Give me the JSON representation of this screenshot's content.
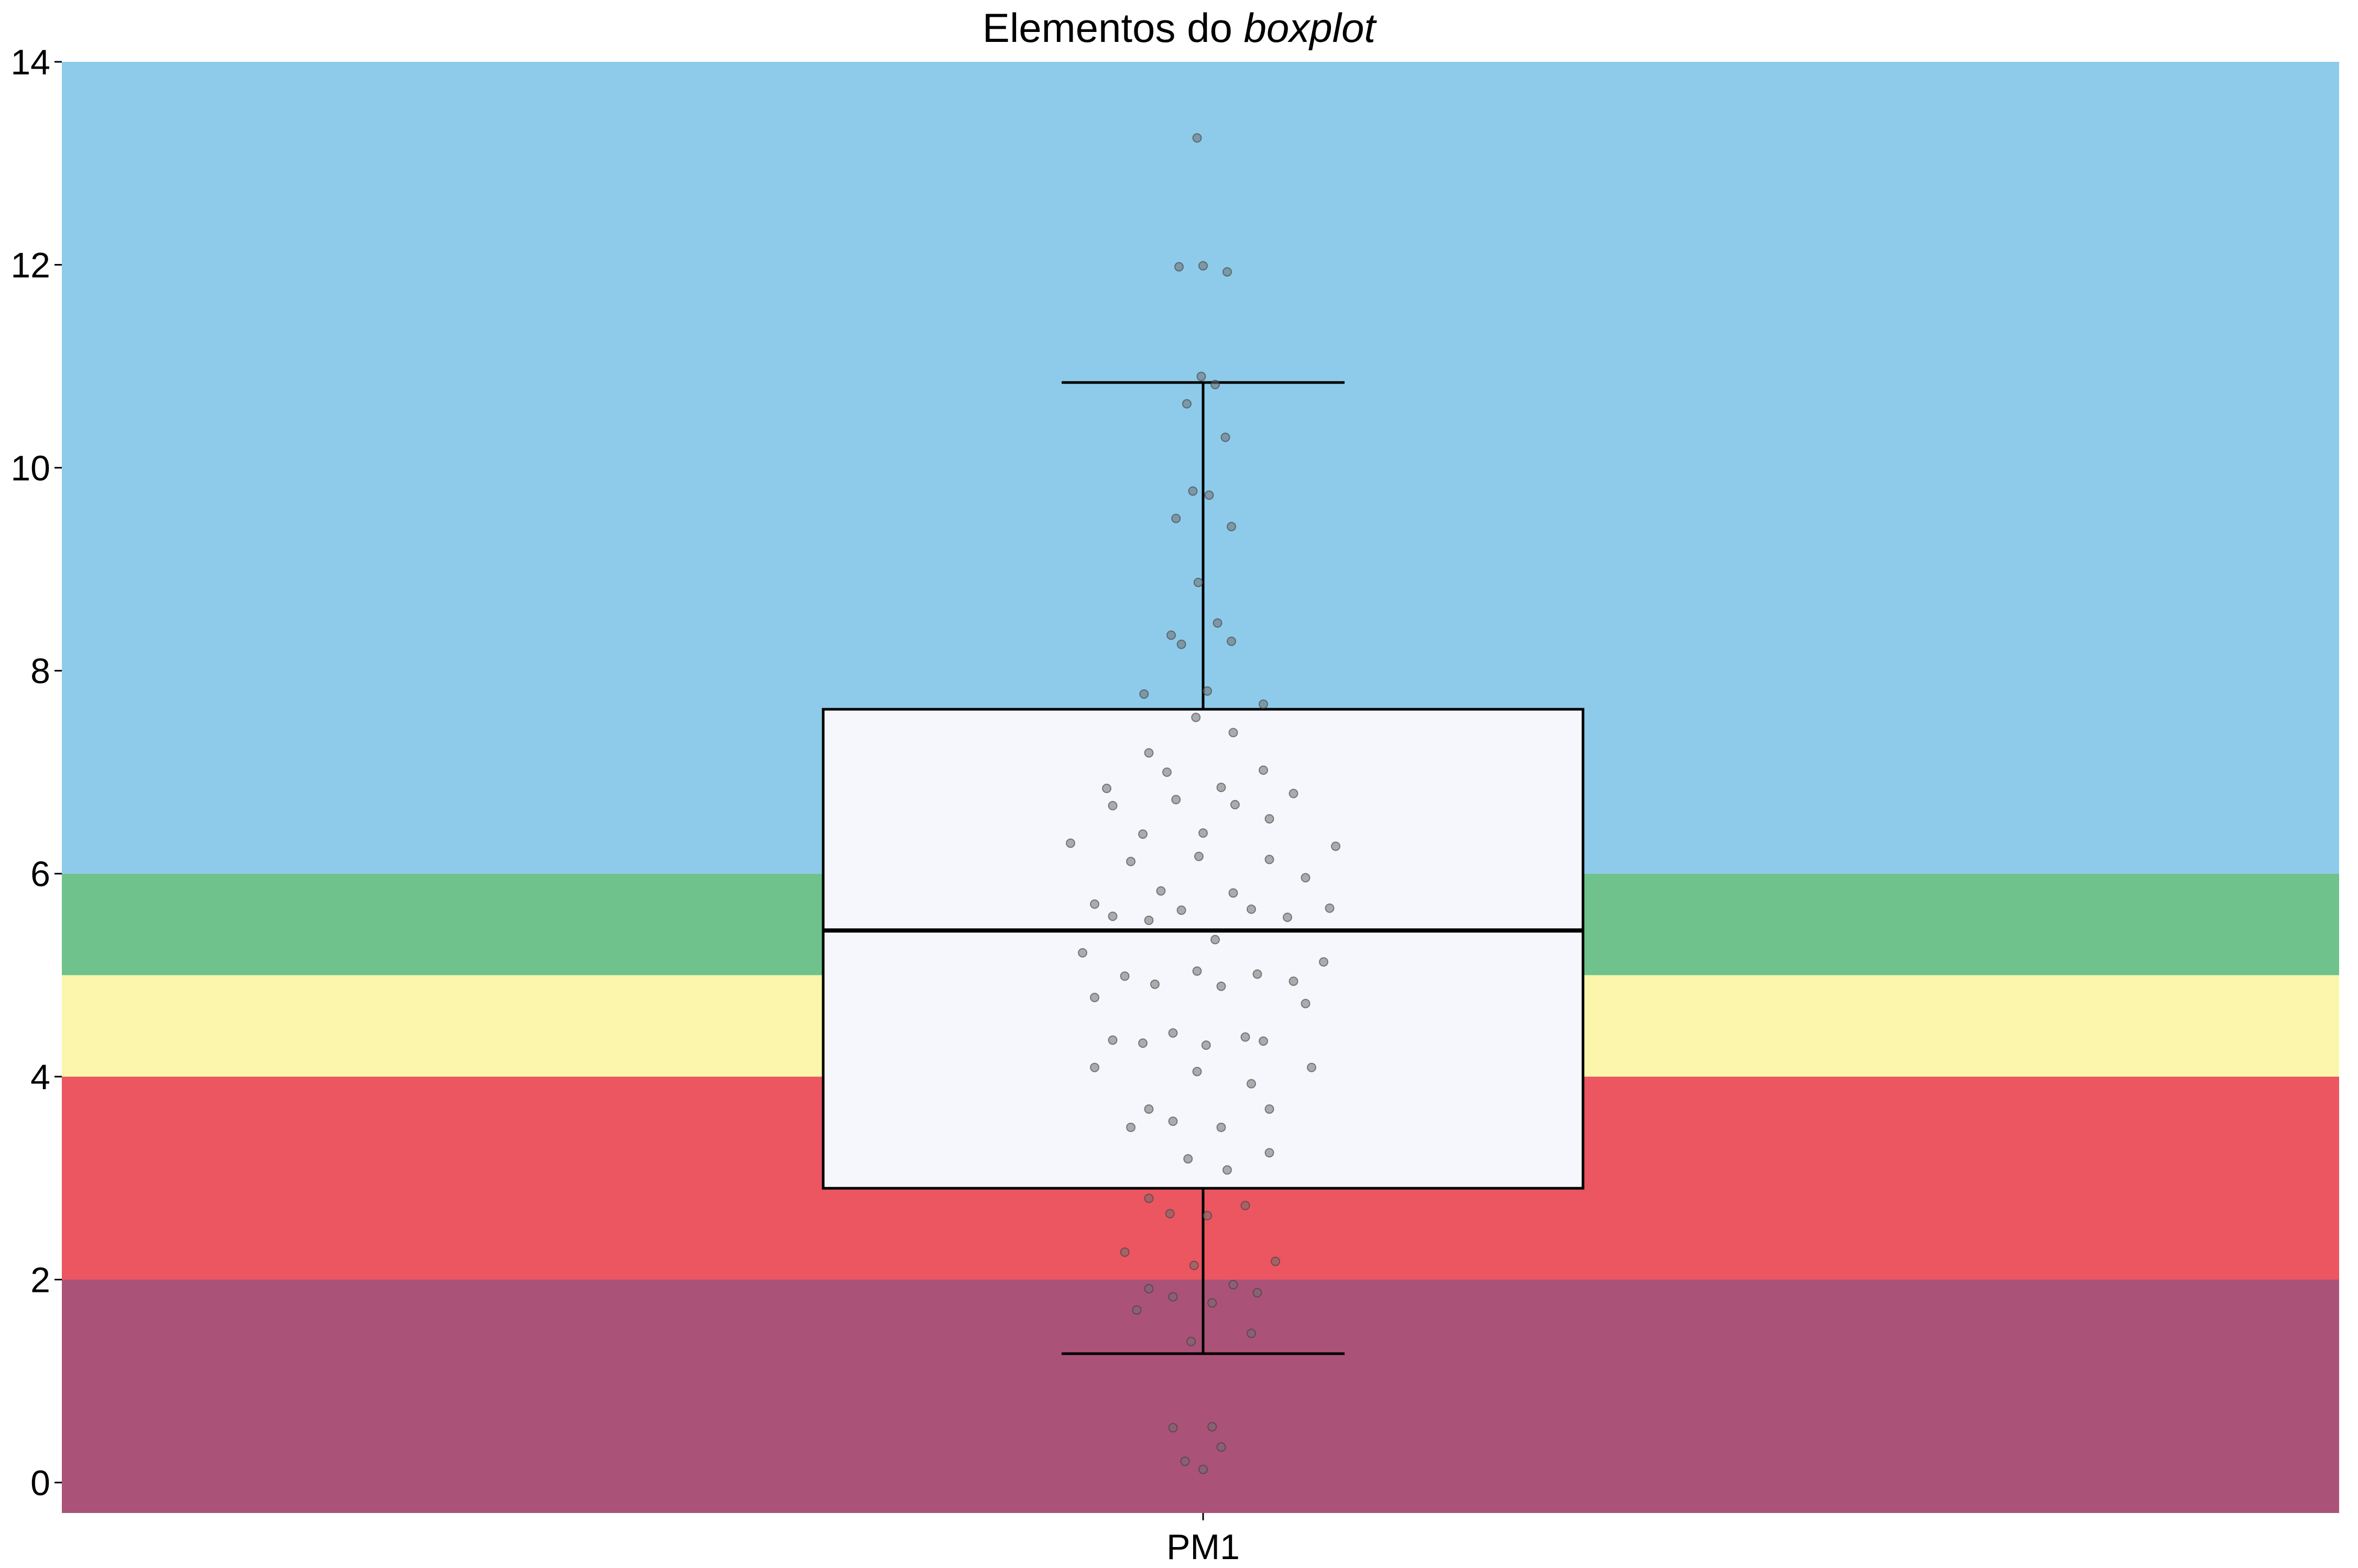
{
  "chart_data": {
    "type": "box",
    "title": {
      "text": "Elementos do",
      "emphasis": "boxplot"
    },
    "xlabel": "",
    "ylabel": "",
    "ylim": [
      -0.3,
      14
    ],
    "yticks": [
      0,
      2,
      4,
      6,
      8,
      10,
      12,
      14
    ],
    "categories": [
      "PM1"
    ],
    "bands": [
      {
        "from": -0.3,
        "to": 2,
        "color": "#ab5279"
      },
      {
        "from": 2,
        "to": 4,
        "color": "#eb5661"
      },
      {
        "from": 4,
        "to": 5,
        "color": "#fbf6ab"
      },
      {
        "from": 5,
        "to": 6,
        "color": "#6fc28b"
      },
      {
        "from": 6,
        "to": 14,
        "color": "#8ecbea"
      }
    ],
    "box": {
      "category": "PM1",
      "whisker_low": 1.27,
      "q1": 2.9,
      "median": 5.44,
      "q3": 7.62,
      "whisker_high": 10.84,
      "fill": "#f5f7fc",
      "stroke": "#000000"
    },
    "points": [
      [
        -0.01,
        13.25
      ],
      [
        -0.04,
        11.98
      ],
      [
        0.0,
        11.99
      ],
      [
        0.04,
        11.93
      ],
      [
        -0.003,
        10.9
      ],
      [
        0.02,
        10.82
      ],
      [
        -0.027,
        10.63
      ],
      [
        0.037,
        10.3
      ],
      [
        -0.017,
        9.77
      ],
      [
        0.01,
        9.73
      ],
      [
        -0.045,
        9.5
      ],
      [
        0.047,
        9.42
      ],
      [
        -0.008,
        8.87
      ],
      [
        0.024,
        8.47
      ],
      [
        -0.053,
        8.35
      ],
      [
        -0.036,
        8.26
      ],
      [
        0.047,
        8.29
      ],
      [
        -0.098,
        7.77
      ],
      [
        0.007,
        7.8
      ],
      [
        0.1,
        7.67
      ],
      [
        -0.012,
        7.54
      ],
      [
        0.05,
        7.39
      ],
      [
        -0.09,
        7.19
      ],
      [
        -0.06,
        7.0
      ],
      [
        0.1,
        7.02
      ],
      [
        -0.16,
        6.84
      ],
      [
        0.03,
        6.85
      ],
      [
        0.15,
        6.79
      ],
      [
        -0.045,
        6.73
      ],
      [
        0.053,
        6.68
      ],
      [
        -0.15,
        6.67
      ],
      [
        0.11,
        6.54
      ],
      [
        -0.1,
        6.39
      ],
      [
        0.0,
        6.4
      ],
      [
        -0.22,
        6.3
      ],
      [
        0.22,
        6.27
      ],
      [
        -0.12,
        6.12
      ],
      [
        -0.007,
        6.17
      ],
      [
        0.11,
        6.14
      ],
      [
        0.17,
        5.96
      ],
      [
        -0.07,
        5.83
      ],
      [
        0.05,
        5.81
      ],
      [
        -0.18,
        5.7
      ],
      [
        0.21,
        5.66
      ],
      [
        -0.036,
        5.64
      ],
      [
        0.08,
        5.65
      ],
      [
        -0.15,
        5.58
      ],
      [
        -0.09,
        5.54
      ],
      [
        0.14,
        5.57
      ],
      [
        0.02,
        5.35
      ],
      [
        -0.2,
        5.22
      ],
      [
        0.2,
        5.13
      ],
      [
        -0.01,
        5.04
      ],
      [
        -0.13,
        4.99
      ],
      [
        0.09,
        5.01
      ],
      [
        0.15,
        4.94
      ],
      [
        -0.08,
        4.91
      ],
      [
        0.03,
        4.89
      ],
      [
        -0.18,
        4.78
      ],
      [
        0.17,
        4.72
      ],
      [
        -0.05,
        4.43
      ],
      [
        0.07,
        4.39
      ],
      [
        -0.15,
        4.36
      ],
      [
        -0.1,
        4.33
      ],
      [
        0.1,
        4.35
      ],
      [
        0.005,
        4.31
      ],
      [
        -0.18,
        4.09
      ],
      [
        0.18,
        4.09
      ],
      [
        -0.01,
        4.05
      ],
      [
        0.08,
        3.93
      ],
      [
        -0.09,
        3.68
      ],
      [
        0.11,
        3.68
      ],
      [
        -0.05,
        3.56
      ],
      [
        -0.12,
        3.5
      ],
      [
        0.03,
        3.5
      ],
      [
        0.11,
        3.25
      ],
      [
        -0.025,
        3.19
      ],
      [
        0.04,
        3.08
      ],
      [
        -0.09,
        2.8
      ],
      [
        0.07,
        2.73
      ],
      [
        -0.055,
        2.65
      ],
      [
        0.007,
        2.63
      ],
      [
        -0.13,
        2.27
      ],
      [
        0.12,
        2.18
      ],
      [
        -0.015,
        2.14
      ],
      [
        -0.09,
        1.91
      ],
      [
        0.05,
        1.95
      ],
      [
        0.09,
        1.87
      ],
      [
        -0.05,
        1.83
      ],
      [
        0.015,
        1.77
      ],
      [
        -0.11,
        1.7
      ],
      [
        0.08,
        1.47
      ],
      [
        -0.02,
        1.39
      ],
      [
        -0.05,
        0.54
      ],
      [
        0.015,
        0.55
      ],
      [
        0.03,
        0.35
      ],
      [
        -0.03,
        0.21
      ],
      [
        0.0,
        0.13
      ]
    ]
  }
}
